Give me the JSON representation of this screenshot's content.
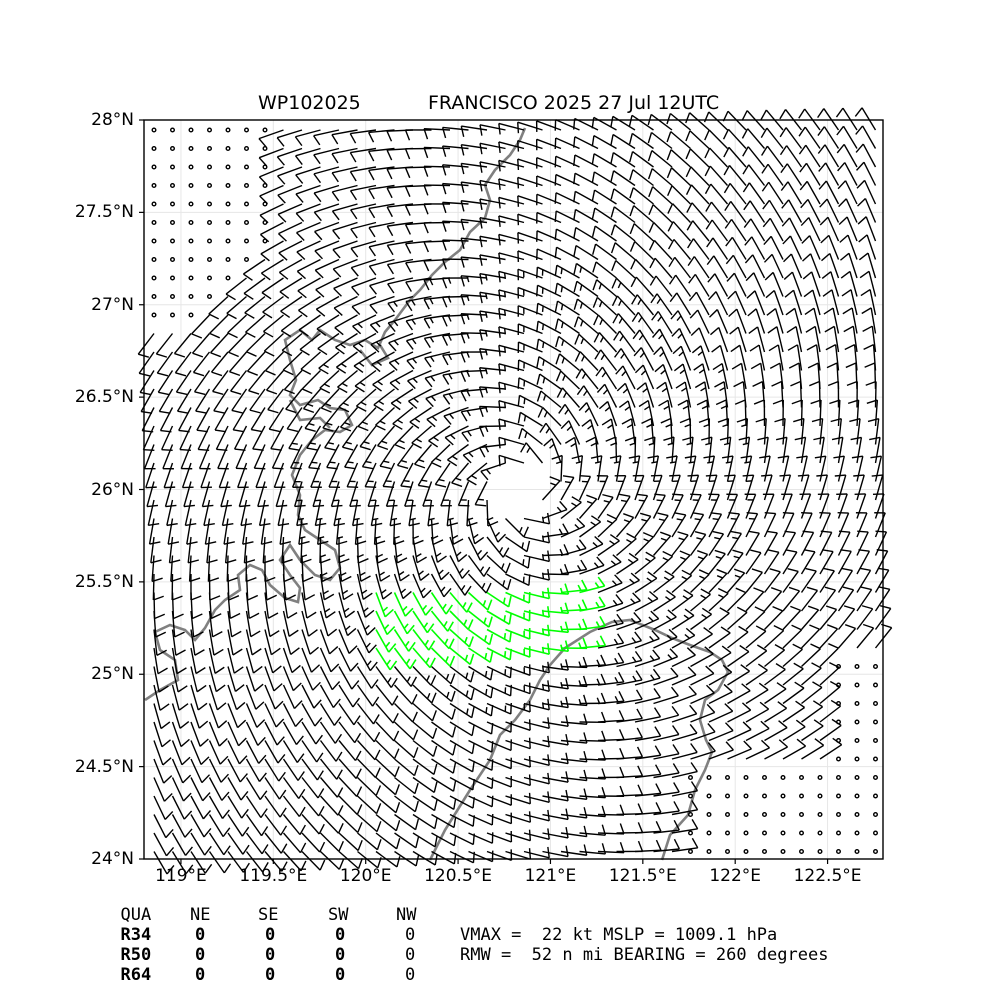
{
  "title": {
    "storm_id": "WP102025",
    "storm_info": "FRANCISCO 2025 27 Jul 12UTC"
  },
  "axes": {
    "lat_labels": [
      "28°N",
      "27.5°N",
      "27°N",
      "26.5°N",
      "26°N",
      "25.5°N",
      "25°N",
      "24.5°N",
      "24°N"
    ],
    "lat_values": [
      28,
      27.5,
      27,
      26.5,
      26,
      25.5,
      25,
      24.5,
      24
    ],
    "lon_labels": [
      "119°E",
      "119.5°E",
      "120°E",
      "120.5°E",
      "121°E",
      "121.5°E",
      "122°E",
      "122.5°E"
    ],
    "lon_values": [
      119,
      119.5,
      120,
      120.5,
      121,
      121.5,
      122,
      122.5
    ],
    "lon_range": [
      118.8,
      122.8
    ],
    "lat_range": [
      24,
      28
    ],
    "grid": true
  },
  "wind_field": {
    "type": "wind barbs",
    "center_lon": 120.85,
    "center_lat": 26.0,
    "rmw_nmi": 52,
    "high_wind_color": "#00ff00",
    "barb_color": "#000000",
    "coast_color": "#808080"
  },
  "radii_table": {
    "header": [
      "QUA",
      "NE",
      "SE",
      "SW",
      "NW"
    ],
    "rows": [
      {
        "label": "R34",
        "values": [
          "0",
          "0",
          "0",
          "0"
        ]
      },
      {
        "label": "R50",
        "values": [
          "0",
          "0",
          "0",
          "0"
        ]
      },
      {
        "label": "R64",
        "values": [
          "0",
          "0",
          "0",
          "0"
        ]
      }
    ]
  },
  "summary": {
    "line1": "VMAX =  22 kt MSLP = 1009.1 hPa",
    "line2": "RMW =  52 n mi BEARING = 260 degrees"
  }
}
